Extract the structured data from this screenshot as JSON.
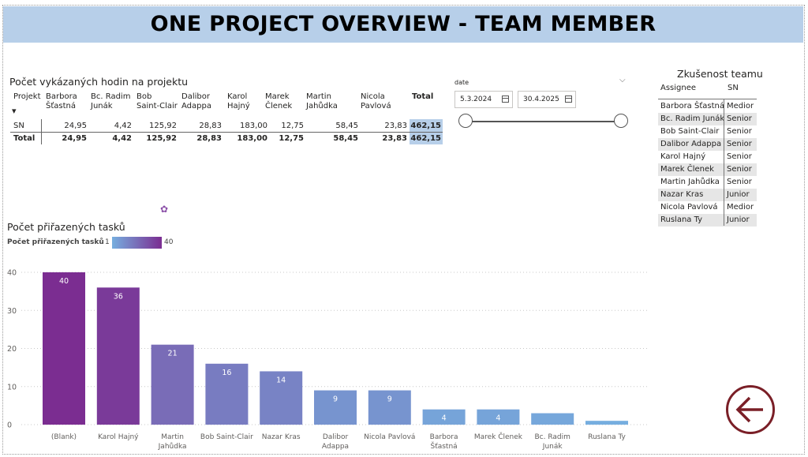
{
  "header": {
    "title": "ONE PROJECT OVERVIEW - TEAM MEMBER"
  },
  "hours": {
    "title": "Počet vykázaných hodin na projektu",
    "row_header": "Projekt",
    "columns": [
      "Barbora\nŠťastná",
      "Bc. Radim\nJunák",
      "Bob\nSaint-Clair",
      "Dalibor\nAdappa",
      "Karol\nHajný",
      "Marek\nČlenek",
      "Martin\nJahůdka",
      "Nicola\nPavlová",
      "Total"
    ],
    "rows": [
      {
        "label": "SN",
        "values": [
          "24,95",
          "4,42",
          "125,92",
          "28,83",
          "183,00",
          "12,75",
          "58,45",
          "23,83",
          "462,15"
        ]
      },
      {
        "label": "Total",
        "values": [
          "24,95",
          "4,42",
          "125,92",
          "28,83",
          "183,00",
          "12,75",
          "58,45",
          "23,83",
          "462,15"
        ]
      }
    ]
  },
  "date_slicer": {
    "label": "date",
    "start": "5.3.2024",
    "end": "30.4.2025",
    "chevron_icon": "chevron-down-icon",
    "calendar_icon": "calendar-icon"
  },
  "team": {
    "title": "Zkušenost teamu",
    "col_assignee": "Assignee",
    "col_level": "SN",
    "rows": [
      {
        "assignee": "Barbora Šťastná",
        "level": "Medior"
      },
      {
        "assignee": "Bc. Radim Junák",
        "level": "Senior"
      },
      {
        "assignee": "Bob Saint-Clair",
        "level": "Senior"
      },
      {
        "assignee": "Dalibor Adappa",
        "level": "Senior"
      },
      {
        "assignee": "Karol Hajný",
        "level": "Senior"
      },
      {
        "assignee": "Marek Členek",
        "level": "Senior"
      },
      {
        "assignee": "Martin Jahůdka",
        "level": "Senior"
      },
      {
        "assignee": "Nazar Kras",
        "level": "Junior"
      },
      {
        "assignee": "Nicola Pavlová",
        "level": "Medior"
      },
      {
        "assignee": "Ruslana Ty",
        "level": "Junior"
      }
    ]
  },
  "chart_data": {
    "type": "bar",
    "title": "Počet přiřazených tasků",
    "legend": {
      "label": "Počet přiřazených tasků",
      "min": "1",
      "max": "40",
      "color_min": "#76aedf",
      "color_max": "#7b2d91"
    },
    "categories": [
      "(Blank)",
      "Karol Hajný",
      "Martin\nJahůdka",
      "Bob Saint-Clair",
      "Nazar Kras",
      "Dalibor\nAdappa",
      "Nicola Pavlová",
      "Barbora\nŠťastná",
      "Marek Členek",
      "Bc. Radim\nJunák",
      "Ruslana Ty"
    ],
    "values": [
      40,
      36,
      21,
      16,
      14,
      9,
      9,
      4,
      4,
      3,
      1
    ],
    "data_labels": [
      "40",
      "36",
      "21",
      "16",
      "14",
      "9",
      "9",
      "4",
      "4",
      "",
      ""
    ],
    "yticks": [
      "0",
      "10",
      "20",
      "30",
      "40"
    ],
    "ylim": [
      0,
      40
    ],
    "grid": true
  },
  "nav": {
    "back_icon": "arrow-left-icon",
    "back_color": "#7a1f27"
  }
}
